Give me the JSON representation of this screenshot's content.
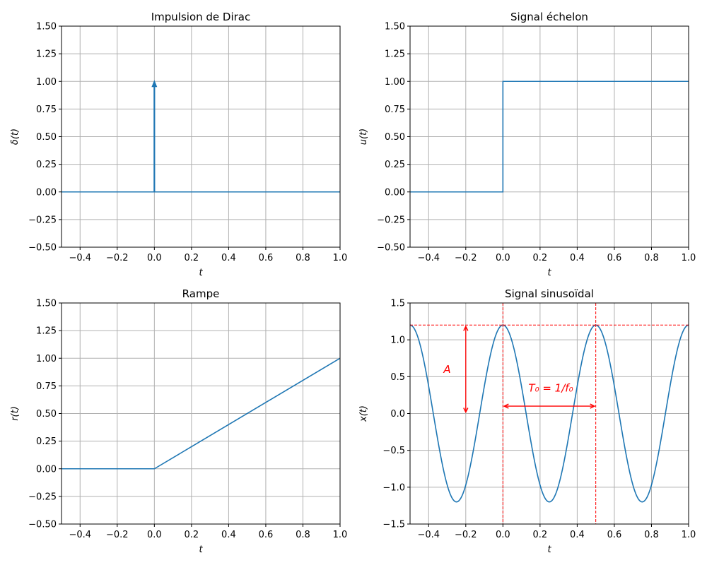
{
  "chart_data": [
    {
      "type": "line",
      "title": "Impulsion de Dirac",
      "xlabel": "t",
      "ylabel": "δ(t)",
      "xlim": [
        -0.5,
        1.0
      ],
      "ylim": [
        -0.5,
        1.5
      ],
      "xticks": [
        "−0.4",
        "−0.2",
        "0.0",
        "0.2",
        "0.4",
        "0.6",
        "0.8",
        "1.0"
      ],
      "yticks": [
        "−0.50",
        "−0.25",
        "0.00",
        "0.25",
        "0.50",
        "0.75",
        "1.00",
        "1.25",
        "1.50"
      ],
      "grid": true,
      "series": [
        {
          "name": "baseline",
          "x": [
            -0.5,
            1.0
          ],
          "y": [
            0,
            0
          ]
        }
      ],
      "arrows": [
        {
          "x": 0,
          "y_from": 0,
          "y_to": 1.0
        }
      ]
    },
    {
      "type": "line",
      "title": "Signal échelon",
      "xlabel": "t",
      "ylabel": "u(t)",
      "xlim": [
        -0.5,
        1.0
      ],
      "ylim": [
        -0.5,
        1.5
      ],
      "xticks": [
        "−0.4",
        "−0.2",
        "0.0",
        "0.2",
        "0.4",
        "0.6",
        "0.8",
        "1.0"
      ],
      "yticks": [
        "−0.50",
        "−0.25",
        "0.00",
        "0.25",
        "0.50",
        "0.75",
        "1.00",
        "1.25",
        "1.50"
      ],
      "grid": true,
      "series": [
        {
          "name": "u",
          "x": [
            -0.5,
            0,
            0,
            1.0
          ],
          "y": [
            0,
            0,
            1,
            1
          ]
        }
      ]
    },
    {
      "type": "line",
      "title": "Rampe",
      "xlabel": "t",
      "ylabel": "r(t)",
      "xlim": [
        -0.5,
        1.0
      ],
      "ylim": [
        -0.5,
        1.5
      ],
      "xticks": [
        "−0.4",
        "−0.2",
        "0.0",
        "0.2",
        "0.4",
        "0.6",
        "0.8",
        "1.0"
      ],
      "yticks": [
        "−0.50",
        "−0.25",
        "0.00",
        "0.25",
        "0.50",
        "0.75",
        "1.00",
        "1.25",
        "1.50"
      ],
      "grid": true,
      "series": [
        {
          "name": "r",
          "x": [
            -0.5,
            0,
            1.0
          ],
          "y": [
            0,
            0,
            1.0
          ]
        }
      ]
    },
    {
      "type": "line",
      "title": "Signal sinusoïdal",
      "xlabel": "t",
      "ylabel": "x(t)",
      "xlim": [
        -0.5,
        1.0
      ],
      "ylim": [
        -1.5,
        1.5
      ],
      "xticks": [
        "−0.4",
        "−0.2",
        "0.0",
        "0.2",
        "0.4",
        "0.6",
        "0.8",
        "1.0"
      ],
      "yticks": [
        "−1.5",
        "−1.0",
        "−0.5",
        "0.0",
        "0.5",
        "1.0",
        "1.5"
      ],
      "grid": true,
      "function": {
        "kind": "cosine",
        "amplitude": 1.2,
        "frequency": 2,
        "samples": 300
      },
      "annotations": {
        "amplitude_label": "A",
        "period_label": "T₀ = 1/f₀",
        "amplitude_arrow": {
          "x": -0.2,
          "y_from": 0,
          "y_to": 1.2
        },
        "period_arrow": {
          "y": 0.1,
          "x_from": 0,
          "x_to": 0.5
        },
        "vlines": [
          0,
          0.5
        ],
        "hline": 1.2
      }
    }
  ],
  "colors": {
    "line": "#1f77b4",
    "annot": "#ff0000",
    "grid": "#b0b0b0"
  }
}
